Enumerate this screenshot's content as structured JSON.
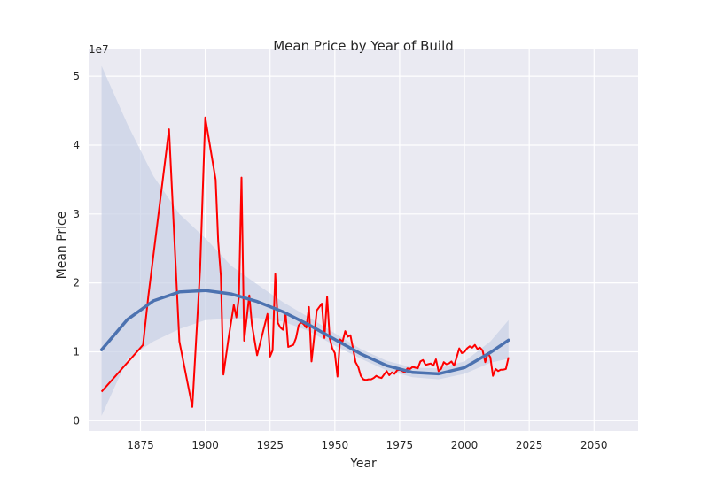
{
  "chart_data": {
    "type": "line",
    "title": "Mean Price by Year of Build",
    "xlabel": "Year",
    "ylabel": "Mean Price",
    "y_exponent_label": "1e7",
    "xlim": [
      1855,
      2067
    ],
    "ylim": [
      -0.15,
      5.4
    ],
    "x_ticks": [
      1875,
      1900,
      1925,
      1950,
      1975,
      2000,
      2025,
      2050
    ],
    "y_ticks": [
      0,
      1,
      2,
      3,
      4,
      5
    ],
    "grid": true,
    "colors": {
      "background": "#eaeaf2",
      "grid": "#ffffff",
      "raw_line": "#ff0000",
      "fit_line": "#4c72b0",
      "ci_band": "#c8d0e6"
    },
    "series": [
      {
        "type": "line",
        "x": [
          1860,
          1876,
          1878,
          1886,
          1890,
          1895,
          1898,
          1900,
          1904,
          1905,
          1906,
          1907,
          1909,
          1911,
          1912,
          1913,
          1914,
          1915,
          1917,
          1918,
          1920,
          1924,
          1925,
          1926,
          1927,
          1928,
          1929,
          1930,
          1931,
          1932,
          1934,
          1935,
          1936,
          1937,
          1938,
          1939,
          1940,
          1941,
          1942,
          1943,
          1945,
          1946,
          1947,
          1948,
          1949,
          1950,
          1951,
          1952,
          1953,
          1954,
          1955,
          1956,
          1957,
          1958,
          1959,
          1960,
          1961,
          1962,
          1963,
          1964,
          1965,
          1966,
          1967,
          1968,
          1969,
          1970,
          1971,
          1972,
          1973,
          1974,
          1975,
          1976,
          1977,
          1978,
          1979,
          1980,
          1981,
          1982,
          1983,
          1984,
          1985,
          1986,
          1987,
          1988,
          1989,
          1990,
          1991,
          1992,
          1993,
          1994,
          1995,
          1996,
          1997,
          1998,
          1999,
          2000,
          2001,
          2002,
          2003,
          2004,
          2005,
          2006,
          2007,
          2008,
          2009,
          2010,
          2011,
          2012,
          2013,
          2014,
          2015,
          2016,
          2017
        ],
        "y": [
          0.42,
          1.1,
          1.8,
          4.23,
          1.15,
          0.2,
          2.2,
          4.4,
          3.5,
          2.6,
          2.1,
          0.67,
          1.2,
          1.68,
          1.5,
          1.8,
          3.53,
          1.16,
          1.82,
          1.4,
          0.95,
          1.55,
          0.93,
          1.02,
          2.13,
          1.42,
          1.35,
          1.32,
          1.55,
          1.07,
          1.1,
          1.2,
          1.38,
          1.43,
          1.4,
          1.35,
          1.65,
          0.86,
          1.2,
          1.6,
          1.7,
          1.2,
          1.8,
          1.2,
          1.05,
          0.98,
          0.64,
          1.18,
          1.15,
          1.3,
          1.22,
          1.24,
          1.05,
          0.85,
          0.78,
          0.65,
          0.6,
          0.59,
          0.6,
          0.6,
          0.62,
          0.65,
          0.63,
          0.62,
          0.67,
          0.72,
          0.66,
          0.7,
          0.68,
          0.73,
          0.74,
          0.72,
          0.7,
          0.76,
          0.75,
          0.78,
          0.77,
          0.76,
          0.86,
          0.88,
          0.81,
          0.82,
          0.83,
          0.8,
          0.89,
          0.72,
          0.75,
          0.85,
          0.82,
          0.83,
          0.86,
          0.8,
          0.92,
          1.05,
          0.98,
          1.0,
          1.05,
          1.08,
          1.06,
          1.1,
          1.04,
          1.06,
          1.02,
          0.85,
          0.98,
          0.92,
          0.65,
          0.75,
          0.72,
          0.74,
          0.74,
          0.75,
          0.92
        ]
      },
      {
        "type": "line",
        "x": [
          1860,
          1870,
          1880,
          1890,
          1900,
          1910,
          1920,
          1930,
          1940,
          1950,
          1960,
          1970,
          1980,
          1990,
          2000,
          2010,
          2017
        ],
        "y": [
          1.03,
          1.47,
          1.74,
          1.87,
          1.89,
          1.84,
          1.73,
          1.58,
          1.39,
          1.18,
          0.97,
          0.8,
          0.7,
          0.68,
          0.77,
          0.99,
          1.17
        ]
      }
    ],
    "ci_band": {
      "x": [
        1860,
        1870,
        1880,
        1890,
        1900,
        1910,
        1920,
        1930,
        1940,
        1950,
        1960,
        1970,
        1980,
        1990,
        2000,
        2010,
        2017
      ],
      "upper": [
        5.15,
        4.3,
        3.55,
        3.0,
        2.65,
        2.25,
        1.98,
        1.72,
        1.5,
        1.27,
        1.04,
        0.87,
        0.77,
        0.76,
        0.86,
        1.15,
        1.46
      ],
      "lower": [
        0.07,
        0.9,
        1.15,
        1.33,
        1.46,
        1.48,
        1.49,
        1.44,
        1.3,
        1.09,
        0.9,
        0.73,
        0.63,
        0.6,
        0.68,
        0.84,
        0.9
      ]
    }
  }
}
